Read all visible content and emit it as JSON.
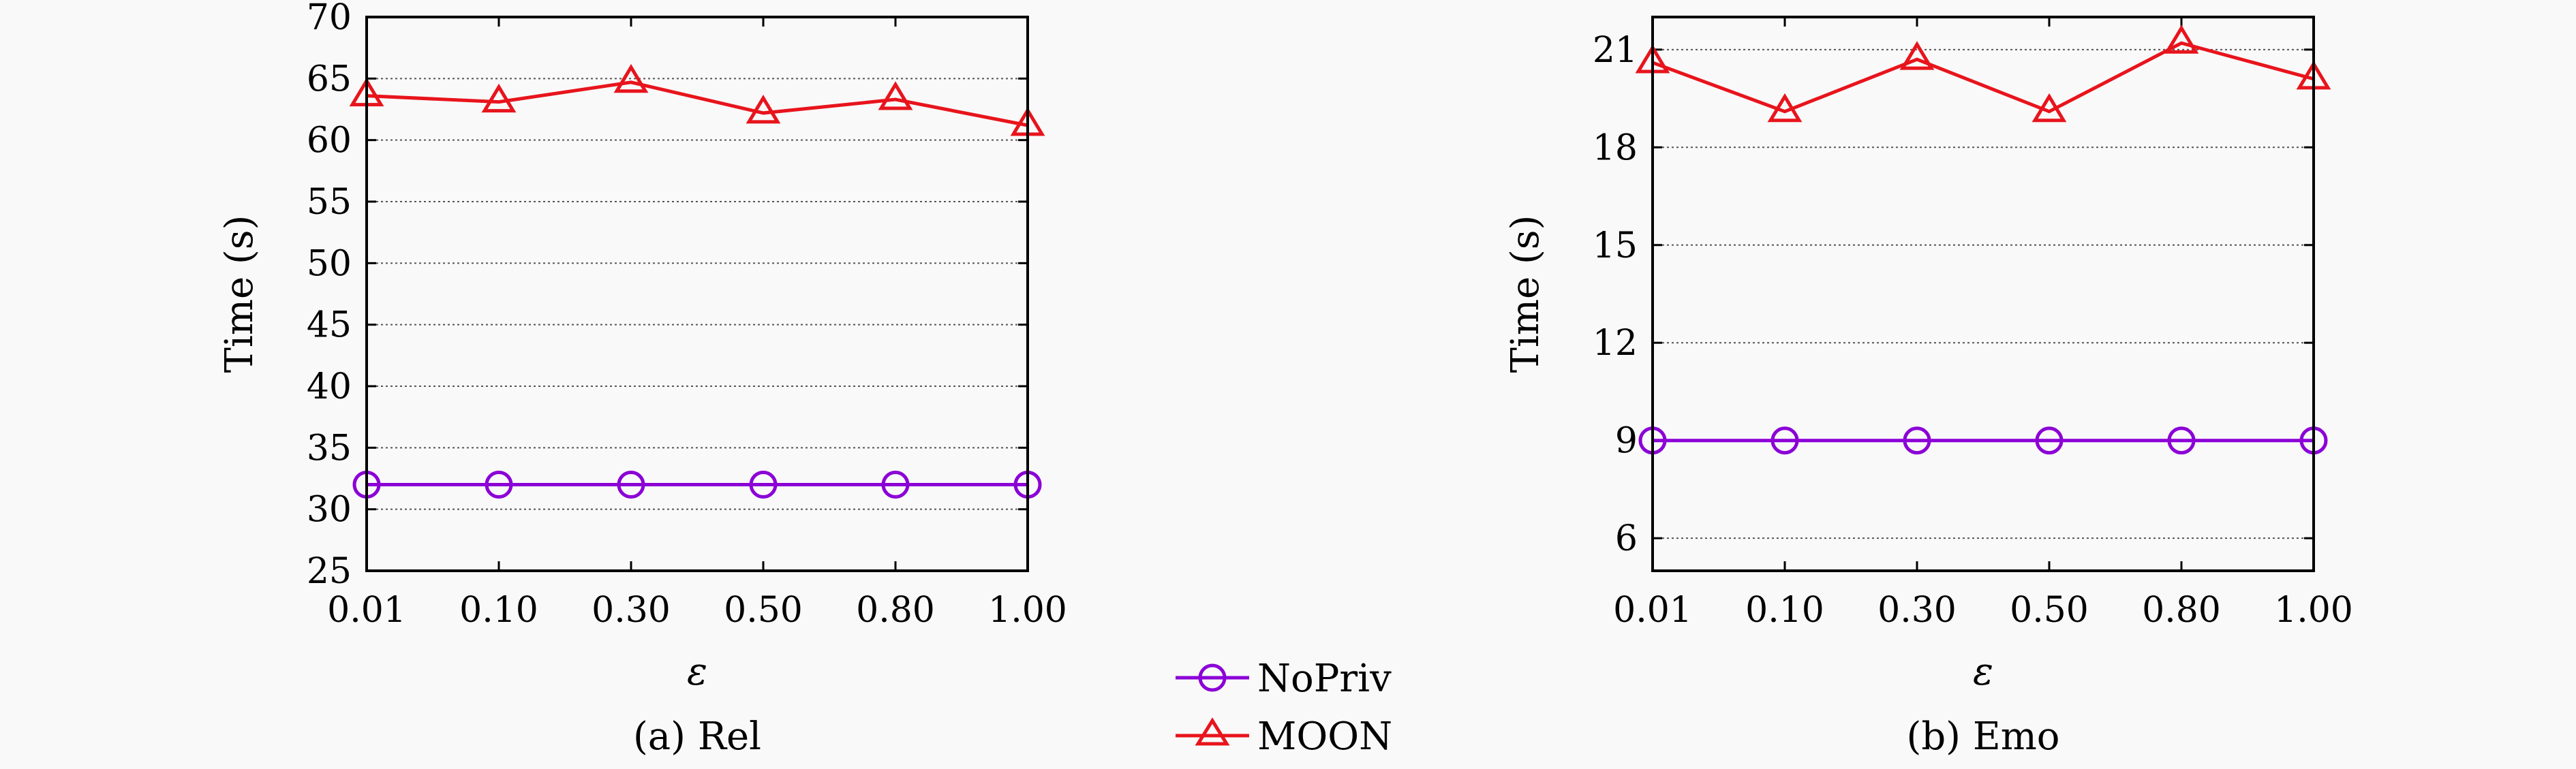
{
  "legend": {
    "items": [
      {
        "label": "NoPriv",
        "color": "#8b00d6",
        "marker": "circle"
      },
      {
        "label": "MOON",
        "color": "#e8141c",
        "marker": "triangle"
      }
    ]
  },
  "chart_data": [
    {
      "type": "line",
      "caption": "(a) Rel",
      "xlabel": "ε",
      "ylabel": "Time (s)",
      "categories": [
        "0.01",
        "0.10",
        "0.30",
        "0.50",
        "0.80",
        "1.00"
      ],
      "ylim": [
        25,
        70
      ],
      "yticks": [
        25,
        30,
        35,
        40,
        45,
        50,
        55,
        60,
        65,
        70
      ],
      "grid": true,
      "series": [
        {
          "name": "NoPriv",
          "marker": "circle",
          "color": "#8b00d6",
          "values": [
            32,
            32,
            32,
            32,
            32,
            32
          ]
        },
        {
          "name": "MOON",
          "marker": "triangle",
          "color": "#e8141c",
          "values": [
            63.6,
            63.1,
            64.7,
            62.2,
            63.3,
            61.2
          ]
        }
      ]
    },
    {
      "type": "line",
      "caption": "(b) Emo",
      "xlabel": "ε",
      "ylabel": "Time (s)",
      "categories": [
        "0.01",
        "0.10",
        "0.30",
        "0.50",
        "0.80",
        "1.00"
      ],
      "ylim": [
        5,
        22
      ],
      "yticks": [
        6,
        9,
        12,
        15,
        18,
        21
      ],
      "grid": true,
      "series": [
        {
          "name": "NoPriv",
          "marker": "circle",
          "color": "#8b00d6",
          "values": [
            9,
            9,
            9,
            9,
            9,
            9
          ]
        },
        {
          "name": "MOON",
          "marker": "triangle",
          "color": "#e8141c",
          "values": [
            20.6,
            19.1,
            20.7,
            19.1,
            21.2,
            20.1
          ]
        }
      ]
    }
  ]
}
